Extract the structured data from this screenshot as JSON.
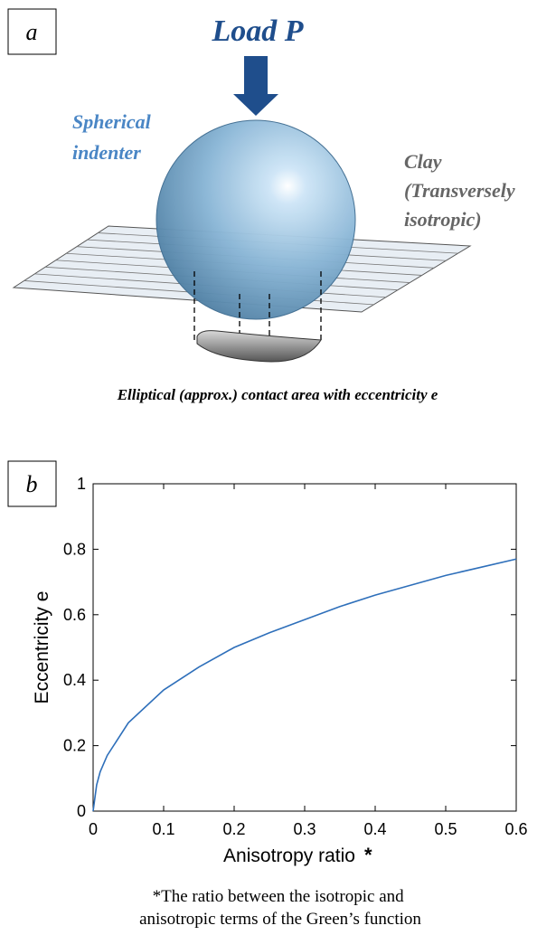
{
  "panel_a": {
    "label": "a",
    "load": "Load P",
    "indenter": [
      "Spherical",
      "indenter"
    ],
    "clay": [
      "Clay",
      "(Transversely",
      "isotropic)"
    ],
    "caption": "Elliptical (approx.) contact area with eccentricity e"
  },
  "panel_b": {
    "label": "b",
    "footnote": [
      "*The ratio between the isotropic and",
      "anisotropic terms of the Green’s function"
    ]
  },
  "chart_data": {
    "type": "line",
    "xlabel": "Anisotropy ratio",
    "xlabel_mark": "*",
    "ylabel": "Eccentricity e",
    "x": [
      0,
      0.005,
      0.01,
      0.02,
      0.05,
      0.1,
      0.15,
      0.2,
      0.25,
      0.3,
      0.35,
      0.4,
      0.45,
      0.5,
      0.55,
      0.6
    ],
    "series": [
      {
        "color": "#2e6fba",
        "values": [
          0,
          0.08,
          0.12,
          0.17,
          0.27,
          0.37,
          0.44,
          0.5,
          0.545,
          0.585,
          0.625,
          0.66,
          0.69,
          0.72,
          0.745,
          0.77
        ]
      }
    ],
    "xlim": [
      0,
      0.6
    ],
    "ylim": [
      0,
      1
    ],
    "xticks": [
      0,
      0.1,
      0.2,
      0.3,
      0.4,
      0.5,
      0.6
    ],
    "yticks": [
      0,
      0.2,
      0.4,
      0.6,
      0.8,
      1
    ]
  }
}
